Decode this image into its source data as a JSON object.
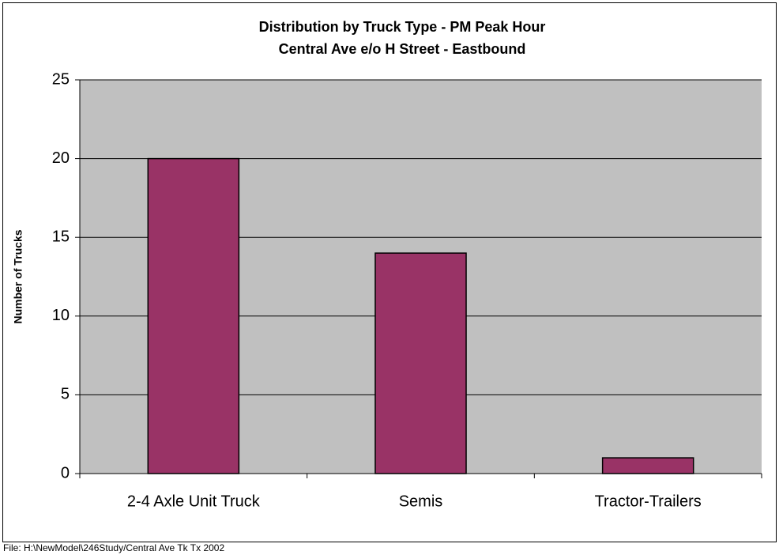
{
  "chart_data": {
    "type": "bar",
    "title": "Distribution by Truck Type - PM Peak Hour",
    "subtitle": "Central Ave e/o H Street - Eastbound",
    "y_label": "Number of Trucks",
    "categories": [
      "2-4 Axle Unit Truck",
      "Semis",
      "Tractor-Trailers"
    ],
    "values": [
      20,
      14,
      1
    ],
    "color": "#993366",
    "ylim": [
      0,
      25
    ],
    "yticks": [
      0,
      5,
      10,
      15,
      20,
      25
    ],
    "grid": true,
    "footnote": "File: H:\\NewModel\\246Study/Central Ave Tk Tx 2002"
  }
}
